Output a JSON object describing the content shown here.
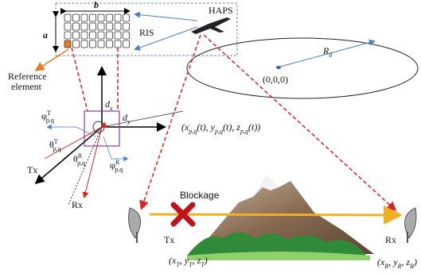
{
  "ris": {
    "label": "RIS",
    "width_label": "b",
    "height_label": "a",
    "reference": [
      "Reference",
      "element"
    ]
  },
  "haps": {
    "label": "HAPS",
    "radius": [
      {
        "t": "R"
      },
      {
        "sub": "0"
      }
    ],
    "origin": "(0,0,0)"
  },
  "element": {
    "dx": [
      {
        "t": "d"
      },
      {
        "sub": "x"
      }
    ],
    "dy": [
      {
        "t": "d"
      },
      {
        "sub": "y"
      }
    ],
    "phi_t": [
      {
        "t": "φ"
      },
      {
        "sup": "T"
      },
      {
        "sub": "p,q"
      }
    ],
    "theta_t": [
      {
        "t": "θ"
      },
      {
        "sup": "T"
      },
      {
        "sub": "p,q"
      }
    ],
    "theta_r": [
      {
        "t": "θ"
      },
      {
        "sup": "R"
      },
      {
        "sub": "p,q"
      }
    ],
    "phi_r": [
      {
        "t": "φ"
      },
      {
        "sup": "R"
      },
      {
        "sub": "p,q"
      }
    ],
    "tx": "Tx",
    "rx": "Rx",
    "position": [
      {
        "t": "(x"
      },
      {
        "sub": "p,q"
      },
      {
        "t": "(t), y"
      },
      {
        "sub": "p,q"
      },
      {
        "t": "(t), z"
      },
      {
        "sub": "p,q"
      },
      {
        "t": "(t))"
      }
    ]
  },
  "ground": {
    "blockage": "Blockage",
    "tx": "Tx",
    "rx": "Rx",
    "tx_position": [
      {
        "t": "(x"
      },
      {
        "sub": "T"
      },
      {
        "t": ", y"
      },
      {
        "sub": "T"
      },
      {
        "t": ", z"
      },
      {
        "sub": "T"
      },
      {
        "t": ")"
      }
    ],
    "rx_position": [
      {
        "t": "(x"
      },
      {
        "sub": "R"
      },
      {
        "t": ", y"
      },
      {
        "sub": "R"
      },
      {
        "t": ", z"
      },
      {
        "sub": "R"
      },
      {
        "t": ")"
      }
    ]
  }
}
